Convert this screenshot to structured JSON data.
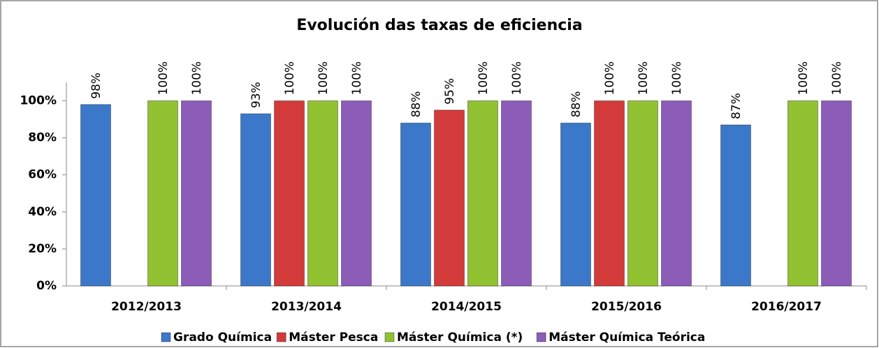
{
  "chart_data": {
    "type": "bar",
    "title": "Evolución das taxas de eficiencia",
    "categories": [
      "2012/2013",
      "2013/2014",
      "2014/2015",
      "2015/2016",
      "2016/2017"
    ],
    "series": [
      {
        "name": "Grado Química",
        "color": "#3b78c9",
        "values": [
          98,
          93,
          88,
          88,
          87
        ],
        "value_labels": [
          "98%",
          "93%",
          "88%",
          "88%",
          "87%"
        ]
      },
      {
        "name": "Máster Pesca",
        "color": "#d33a3a",
        "values": [
          null,
          100,
          95,
          100,
          null
        ],
        "value_labels": [
          null,
          "100%",
          "95%",
          "100%",
          null
        ]
      },
      {
        "name": "Máster Química (*)",
        "color": "#92c132",
        "values": [
          100,
          100,
          100,
          100,
          100
        ],
        "value_labels": [
          "100%",
          "100%",
          "100%",
          "100%",
          "100%"
        ]
      },
      {
        "name": "Máster Química Teórica",
        "color": "#8b5cb8",
        "values": [
          100,
          100,
          100,
          100,
          100
        ],
        "value_labels": [
          "100%",
          "100%",
          "100%",
          "100%",
          "100%"
        ]
      }
    ],
    "ylim": [
      0,
      110
    ],
    "yticks": [
      {
        "value": 0,
        "label": "0%"
      },
      {
        "value": 20,
        "label": "20%"
      },
      {
        "value": 40,
        "label": "40%"
      },
      {
        "value": 60,
        "label": "60%"
      },
      {
        "value": 80,
        "label": "80%"
      },
      {
        "value": 100,
        "label": "100%"
      }
    ],
    "legend": "bottom"
  }
}
